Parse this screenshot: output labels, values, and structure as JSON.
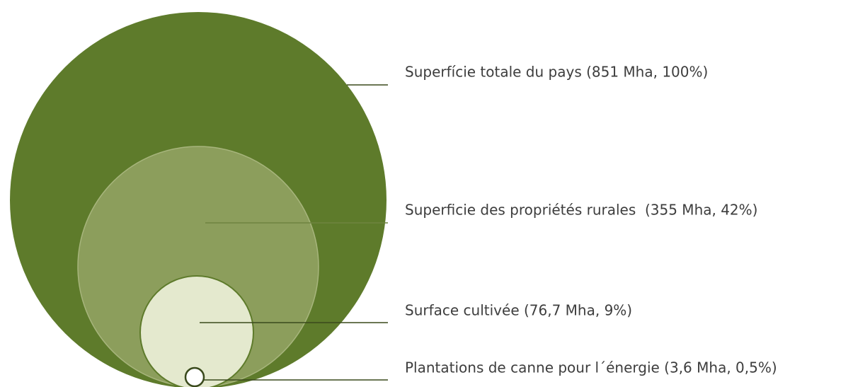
{
  "labels": [
    "Superfície totale du pays (851 Mha, 100%)",
    "Superficie des propriétés rurales  (355 Mha, 42%)",
    "Surface cultivée (76,7 Mha, 9%)",
    "Plantations de canne pour l´énergie (3,6 Mha, 0,5%)"
  ]
}
